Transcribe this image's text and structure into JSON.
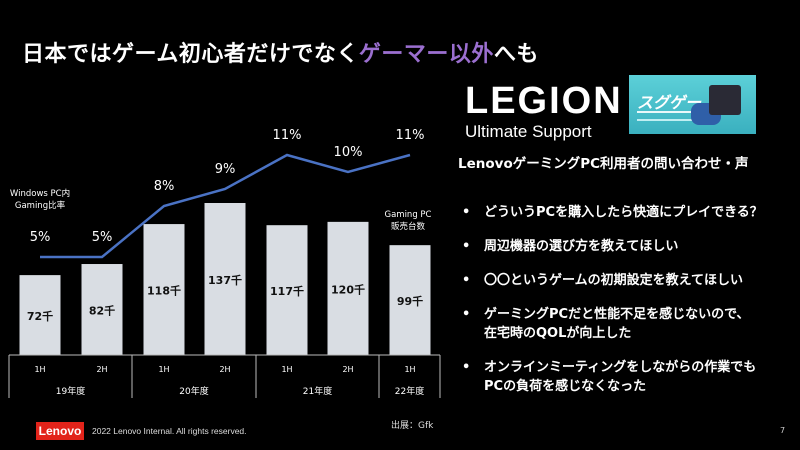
{
  "title": {
    "part1": "日本ではゲーム初心者だけでなく",
    "highlight": "ゲーマー以外",
    "part2": "へも",
    "highlight_color": "#9b6fd0"
  },
  "chart_data": {
    "type": "bar+line",
    "categories": [
      "1H",
      "2H",
      "1H",
      "2H",
      "1H",
      "2H",
      "1H"
    ],
    "groups": [
      {
        "label": "19年度",
        "span": 2
      },
      {
        "label": "20年度",
        "span": 2
      },
      {
        "label": "21年度",
        "span": 2
      },
      {
        "label": "22年度",
        "span": 1
      }
    ],
    "series": [
      {
        "name": "Gaming PC 販売台数",
        "type": "bar",
        "values": [
          72,
          82,
          118,
          137,
          117,
          120,
          99
        ],
        "labels": [
          "72千",
          "82千",
          "118千",
          "137千",
          "117千",
          "120千",
          "99千"
        ],
        "color": "#d9dde3"
      },
      {
        "name": "Windows PC内 Gaming比率",
        "type": "line",
        "values": [
          5,
          5,
          8,
          9,
          11,
          10,
          11
        ],
        "labels": [
          "5%",
          "5%",
          "8%",
          "9%",
          "11%",
          "10%",
          "11%"
        ],
        "color": "#4a72c4"
      }
    ],
    "bar_legend": [
      "Gaming PC",
      "販売台数"
    ],
    "line_legend": [
      "Windows PC内",
      "Gaming比率"
    ]
  },
  "brand": {
    "logo_big": "LEGION",
    "logo_small": "Ultimate Support",
    "promo_text": "スグゲー"
  },
  "questions": {
    "heading": "LenovoゲーミングPC利用者の問い合わせ・声",
    "bullet": "•",
    "items": [
      [
        "どういうPCを購入したら快適にプレイできる？"
      ],
      [
        "周辺機器の選び方を教えてほしい"
      ],
      [
        "〇〇というゲームの初期設定を教えてほしい"
      ],
      [
        "ゲーミングPCだと性能不足を感じないので、",
        "在宅時のQOLが向上した"
      ],
      [
        "オンラインミーティングをしながらの作業でも",
        "PCの負荷を感じなくなった"
      ]
    ]
  },
  "footer": {
    "logo": "Lenovo",
    "copyright": "2022 Lenovo Internal. All rights reserved.",
    "source": "出展：Gfk",
    "page": "7"
  }
}
